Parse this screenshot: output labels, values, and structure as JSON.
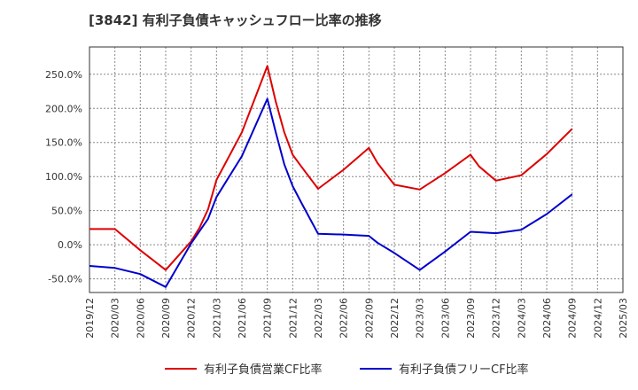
{
  "chart_data": {
    "type": "line",
    "title": "[3842]  有利子負債キャッシュフロー比率の推移",
    "xlabel": "",
    "ylabel": "",
    "ylim": [
      -70,
      290
    ],
    "y_ticks": [
      "250.0%",
      "200.0%",
      "150.0%",
      "100.0%",
      "50.0%",
      "0.0%",
      "-50.0%"
    ],
    "y_tick_values": [
      250,
      200,
      150,
      100,
      50,
      0,
      -50
    ],
    "x_tick_labels": [
      "2019/12",
      "2020/03",
      "2020/06",
      "2020/09",
      "2020/12",
      "2021/03",
      "2021/06",
      "2021/09",
      "2021/12",
      "2022/03",
      "2022/06",
      "2022/09",
      "2022/12",
      "2023/03",
      "2023/06",
      "2023/09",
      "2023/12",
      "2024/03",
      "2024/06",
      "2024/09",
      "2024/12",
      "2025/03"
    ],
    "grid": true,
    "legend_position": "bottom",
    "series": [
      {
        "name": "有利子負債営業CF比率",
        "color": "#dd0000",
        "points": [
          [
            "2019/12",
            23
          ],
          [
            "2020/03",
            23
          ],
          [
            "2020/06",
            -8
          ],
          [
            "2020/09",
            -37
          ],
          [
            "2020/12",
            5
          ],
          [
            "2021/01",
            25
          ],
          [
            "2021/02",
            52
          ],
          [
            "2021/03",
            95
          ],
          [
            "2021/06",
            165
          ],
          [
            "2021/09",
            262
          ],
          [
            "2021/10",
            210
          ],
          [
            "2021/11",
            165
          ],
          [
            "2021/12",
            132
          ],
          [
            "2022/01",
            115
          ],
          [
            "2022/03",
            82
          ],
          [
            "2022/06",
            110
          ],
          [
            "2022/09",
            142
          ],
          [
            "2022/10",
            120
          ],
          [
            "2022/12",
            88
          ],
          [
            "2023/03",
            81
          ],
          [
            "2023/06",
            105
          ],
          [
            "2023/09",
            132
          ],
          [
            "2023/10",
            115
          ],
          [
            "2023/12",
            94
          ],
          [
            "2024/03",
            102
          ],
          [
            "2024/06",
            133
          ],
          [
            "2024/09",
            170
          ]
        ]
      },
      {
        "name": "有利子負債フリーCF比率",
        "color": "#0000cc",
        "points": [
          [
            "2019/12",
            -31
          ],
          [
            "2020/03",
            -34
          ],
          [
            "2020/06",
            -43
          ],
          [
            "2020/09",
            -62
          ],
          [
            "2020/12",
            2
          ],
          [
            "2021/01",
            20
          ],
          [
            "2021/02",
            38
          ],
          [
            "2021/03",
            70
          ],
          [
            "2021/06",
            130
          ],
          [
            "2021/09",
            214
          ],
          [
            "2021/10",
            165
          ],
          [
            "2021/11",
            118
          ],
          [
            "2021/12",
            86
          ],
          [
            "2022/01",
            62
          ],
          [
            "2022/03",
            16
          ],
          [
            "2022/06",
            15
          ],
          [
            "2022/09",
            13
          ],
          [
            "2022/10",
            3
          ],
          [
            "2022/12",
            -12
          ],
          [
            "2023/03",
            -37
          ],
          [
            "2023/06",
            -10
          ],
          [
            "2023/09",
            19
          ],
          [
            "2023/12",
            17
          ],
          [
            "2024/03",
            22
          ],
          [
            "2024/06",
            45
          ],
          [
            "2024/09",
            74
          ]
        ]
      }
    ]
  }
}
